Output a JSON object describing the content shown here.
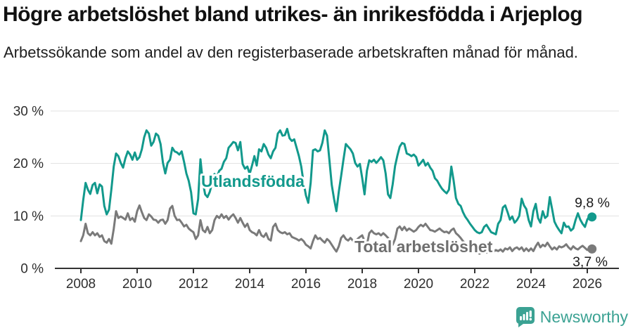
{
  "title": "Högre arbetslöshet bland utrikes- än inrikesfödda i Arjeplog",
  "subtitle": "Arbetssökande som andel av den registerbaserade arbetskraften månad för månad.",
  "logo": {
    "text": "Newsworthy",
    "color": "#3ba293",
    "icon": "speech-bubble-bar-chart-icon"
  },
  "colors": {
    "foreign_line": "#12998c",
    "total_line": "#7a7a7a",
    "total_label": "#6f6f6f",
    "grid": "#e1e1e1",
    "axis": "#333333",
    "value_label": "#1b1b1b",
    "tick_label": "#2e2e2e"
  },
  "chart_data": {
    "type": "line",
    "title": "Högre arbetslöshet bland utrikes- än inrikesfödda i Arjeplog",
    "subtitle": "Arbetssökande som andel av den registerbaserade arbetskraften månad för månad.",
    "x_unit": "month",
    "x_start_year": 2008,
    "x_end": "2026-03",
    "ylim": [
      0,
      30
    ],
    "grid": "horizontal",
    "y_ticks": [
      0,
      10,
      20,
      30
    ],
    "y_tick_labels": [
      "0 %",
      "10 %",
      "20 %",
      "30 %"
    ],
    "x_ticks": [
      2008,
      2010,
      2012,
      2014,
      2016,
      2018,
      2020,
      2022,
      2024,
      2026
    ],
    "legend_position": "inline-labels",
    "series": [
      {
        "name": "Utlandsfödda",
        "slug": "utlandsfodda",
        "color": "#12998c",
        "end_label": "9,8 %",
        "end_value": 9.8,
        "values": [
          9.2,
          13.0,
          16.3,
          15.0,
          14.2,
          15.9,
          16.3,
          14.3,
          16.0,
          15.6,
          11.9,
          10.3,
          11.2,
          15.0,
          19.4,
          21.9,
          21.4,
          20.1,
          19.2,
          21.0,
          22.3,
          21.7,
          20.7,
          22.1,
          20.7,
          21.2,
          22.7,
          25.0,
          26.3,
          25.7,
          23.4,
          24.1,
          25.7,
          25.3,
          23.7,
          20.1,
          18.1,
          20.1,
          20.7,
          23.0,
          22.3,
          22.1,
          21.7,
          22.3,
          20.3,
          18.1,
          16.7,
          14.5,
          10.5,
          10.3,
          13.2,
          20.8,
          16.5,
          14.1,
          13.6,
          14.6,
          16.3,
          18.0,
          17.4,
          18.6,
          19.0,
          20.3,
          21.0,
          23.0,
          23.5,
          24.1,
          23.9,
          22.5,
          24.1,
          19.9,
          19.0,
          19.4,
          18.0,
          19.6,
          21.4,
          19.6,
          22.7,
          22.3,
          23.7,
          23.0,
          21.7,
          21.0,
          22.3,
          23.0,
          25.7,
          26.3,
          25.3,
          25.4,
          26.6,
          24.8,
          24.3,
          24.6,
          23.0,
          21.4,
          19.4,
          16.3,
          13.9,
          12.5,
          16.3,
          22.5,
          22.7,
          22.3,
          22.5,
          23.9,
          26.3,
          25.3,
          20.7,
          15.9,
          13.2,
          10.9,
          14.6,
          17.6,
          20.7,
          23.7,
          23.2,
          22.7,
          21.9,
          20.1,
          19.4,
          19.9,
          17.2,
          14.1,
          18.6,
          20.6,
          20.3,
          20.7,
          20.1,
          20.6,
          21.2,
          20.6,
          18.1,
          14.1,
          13.4,
          16.0,
          19.5,
          21.5,
          23.2,
          23.9,
          23.7,
          21.9,
          21.7,
          21.4,
          21.7,
          21.2,
          19.6,
          20.1,
          20.7,
          19.6,
          20.1,
          19.2,
          18.6,
          17.2,
          16.7,
          15.9,
          15.2,
          14.7,
          14.3,
          15.0,
          19.4,
          16.7,
          13.4,
          12.3,
          11.9,
          10.7,
          9.8,
          9.2,
          8.5,
          7.9,
          7.3,
          6.9,
          6.7,
          6.9,
          7.9,
          8.3,
          7.6,
          6.9,
          6.7,
          6.5,
          8.5,
          9.2,
          11.6,
          12.0,
          10.7,
          9.3,
          9.9,
          8.7,
          9.2,
          10.0,
          13.3,
          12.0,
          11.3,
          9.2,
          8.0,
          10.9,
          12.3,
          9.6,
          8.7,
          10.9,
          9.6,
          10.0,
          13.6,
          11.3,
          8.9,
          8.0,
          7.3,
          6.7,
          8.7,
          7.9,
          8.0,
          7.2,
          7.6,
          9.2,
          10.5,
          9.3,
          8.5,
          7.9,
          9.3,
          10.0,
          9.8
        ]
      },
      {
        "name": "Total arbetslöshet",
        "slug": "total-arbetsloshet",
        "color": "#7a7a7a",
        "end_label": "3,7 %",
        "end_value": 3.7,
        "values": [
          5.2,
          6.3,
          8.5,
          6.7,
          6.3,
          6.9,
          6.3,
          6.7,
          6.0,
          6.3,
          5.2,
          4.9,
          5.6,
          4.7,
          7.5,
          10.9,
          9.6,
          9.9,
          9.6,
          9.3,
          10.5,
          9.2,
          9.6,
          8.9,
          10.9,
          12.0,
          10.7,
          9.6,
          9.2,
          10.3,
          9.9,
          9.3,
          9.2,
          8.7,
          9.2,
          9.3,
          8.5,
          9.2,
          11.4,
          11.9,
          10.0,
          9.2,
          9.3,
          8.7,
          8.0,
          8.3,
          7.6,
          7.2,
          6.9,
          5.6,
          6.3,
          9.2,
          7.3,
          6.9,
          7.9,
          6.7,
          7.3,
          9.2,
          10.0,
          9.6,
          10.3,
          9.6,
          10.0,
          9.3,
          9.9,
          10.3,
          9.6,
          8.7,
          9.6,
          8.7,
          7.9,
          8.5,
          7.3,
          6.9,
          6.7,
          6.3,
          7.3,
          6.3,
          6.0,
          6.7,
          5.6,
          5.3,
          7.9,
          8.5,
          7.3,
          6.9,
          6.7,
          6.9,
          6.5,
          6.7,
          6.0,
          5.8,
          5.6,
          5.3,
          5.6,
          5.2,
          4.5,
          4.2,
          3.8,
          5.2,
          6.3,
          5.6,
          5.8,
          5.3,
          4.9,
          5.6,
          5.2,
          4.5,
          3.8,
          3.2,
          4.2,
          5.8,
          6.3,
          5.6,
          5.3,
          5.8,
          5.3,
          4.9,
          5.6,
          6.0,
          6.3,
          5.2,
          4.5,
          6.7,
          7.2,
          6.7,
          6.5,
          6.7,
          6.3,
          6.7,
          6.3,
          5.8,
          5.2,
          4.5,
          5.6,
          7.6,
          8.0,
          7.3,
          7.9,
          7.2,
          7.6,
          7.3,
          7.0,
          7.3,
          7.9,
          8.3,
          8.0,
          8.5,
          7.9,
          7.3,
          7.2,
          7.0,
          7.3,
          7.6,
          7.2,
          6.9,
          7.0,
          6.7,
          7.3,
          7.6,
          6.7,
          6.3,
          5.8,
          5.2,
          4.7,
          4.2,
          3.8,
          3.5,
          3.3,
          3.0,
          2.8,
          3.0,
          3.2,
          3.0,
          3.3,
          3.6,
          3.2,
          3.5,
          3.3,
          3.6,
          3.2,
          3.8,
          3.6,
          4.0,
          3.3,
          3.8,
          4.0,
          3.6,
          4.0,
          3.3,
          3.8,
          3.3,
          3.8,
          3.3,
          4.2,
          4.9,
          4.0,
          4.5,
          4.2,
          4.9,
          4.2,
          3.6,
          4.0,
          3.6,
          4.2,
          4.0,
          4.2,
          4.6,
          4.0,
          3.6,
          4.2,
          3.8,
          3.6,
          4.0,
          4.3,
          3.9,
          3.5,
          3.6,
          3.7
        ]
      }
    ]
  }
}
